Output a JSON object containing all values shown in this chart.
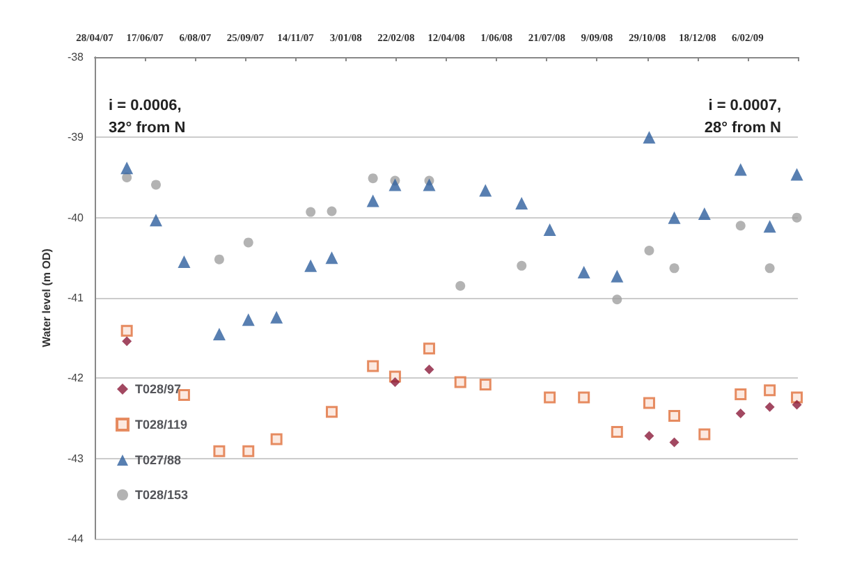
{
  "chart_data": {
    "type": "scatter",
    "ylabel": "Water level (m OD)",
    "annotations": [
      "i = 0.0006,\n32° from N",
      "i = 0.0007,\n28° from N"
    ],
    "xlim": [
      "2007-04-28",
      "2009-03-28"
    ],
    "xticks": [
      {
        "value": "2007-04-28",
        "label": "28/04/07"
      },
      {
        "value": "2007-06-17",
        "label": "17/06/07"
      },
      {
        "value": "2007-08-06",
        "label": "6/08/07"
      },
      {
        "value": "2007-09-25",
        "label": "25/09/07"
      },
      {
        "value": "2007-11-14",
        "label": "14/11/07"
      },
      {
        "value": "2008-01-03",
        "label": "3/01/08"
      },
      {
        "value": "2008-02-22",
        "label": "22/02/08"
      },
      {
        "value": "2008-04-12",
        "label": "12/04/08"
      },
      {
        "value": "2008-06-01",
        "label": "1/06/08"
      },
      {
        "value": "2008-07-21",
        "label": "21/07/08"
      },
      {
        "value": "2008-09-09",
        "label": "9/09/08"
      },
      {
        "value": "2008-10-29",
        "label": "29/10/08"
      },
      {
        "value": "2008-12-18",
        "label": "18/12/08"
      },
      {
        "value": "2009-02-06",
        "label": "6/02/09"
      },
      {
        "value": "2009-03-28",
        "label": null
      }
    ],
    "ylim": [
      -44,
      -38
    ],
    "yticks": [
      -44,
      -43,
      -42,
      -41,
      -40,
      -39,
      -38
    ],
    "grid": "y",
    "legend": "bottom left",
    "series": [
      {
        "name": "T028/97",
        "color": "#8b1a3a",
        "marker": "diamond",
        "x": [
          "2007-05-30",
          "2008-02-21",
          "2008-03-26",
          "2008-10-31",
          "2008-11-25",
          "2009-01-30",
          "2009-02-28",
          "2009-03-27"
        ],
        "values": [
          -41.54,
          -42.05,
          -41.89,
          -42.72,
          -42.8,
          -42.44,
          -42.36,
          -42.33
        ]
      },
      {
        "name": "T028/119",
        "color": "#e0703c",
        "marker": "square",
        "x": [
          "2007-05-30",
          "2007-07-26",
          "2007-08-30",
          "2007-09-28",
          "2007-10-26",
          "2007-12-20",
          "2008-01-30",
          "2008-02-21",
          "2008-03-26",
          "2008-04-26",
          "2008-05-21",
          "2008-07-24",
          "2008-08-27",
          "2008-09-29",
          "2008-10-31",
          "2008-11-25",
          "2008-12-25",
          "2009-01-30",
          "2009-02-28",
          "2009-03-27"
        ],
        "values": [
          -41.41,
          -42.21,
          -42.91,
          -42.91,
          -42.76,
          -42.42,
          -41.85,
          -41.98,
          -41.63,
          -42.05,
          -42.08,
          -42.24,
          -42.24,
          -42.67,
          -42.31,
          -42.47,
          -42.7,
          -42.2,
          -42.15,
          -42.24
        ]
      },
      {
        "name": "T027/88",
        "color": "#2e5f9e",
        "marker": "triangle",
        "x": [
          "2007-05-30",
          "2007-06-28",
          "2007-07-26",
          "2007-08-30",
          "2007-09-28",
          "2007-10-26",
          "2007-11-29",
          "2007-12-20",
          "2008-01-30",
          "2008-02-21",
          "2008-03-26",
          "2008-05-21",
          "2008-06-26",
          "2008-07-24",
          "2008-08-27",
          "2008-09-29",
          "2008-10-31",
          "2008-11-25",
          "2008-12-25",
          "2009-01-30",
          "2009-02-28",
          "2009-03-27"
        ],
        "values": [
          -39.38,
          -40.03,
          -40.55,
          -41.45,
          -41.27,
          -41.24,
          -40.6,
          -40.5,
          -39.79,
          -39.59,
          -39.59,
          -39.66,
          -39.82,
          -40.15,
          -40.68,
          -40.73,
          -39.0,
          -40.0,
          -39.95,
          -39.4,
          -40.11,
          -39.46
        ]
      },
      {
        "name": "T028/153",
        "color": "#a0a0a0",
        "marker": "circle",
        "x": [
          "2007-05-30",
          "2007-06-28",
          "2007-08-30",
          "2007-09-28",
          "2007-11-29",
          "2007-12-20",
          "2008-01-30",
          "2008-02-21",
          "2008-03-26",
          "2008-04-26",
          "2008-06-26",
          "2008-09-29",
          "2008-10-31",
          "2008-11-25",
          "2009-01-30",
          "2009-02-28",
          "2009-03-27"
        ],
        "values": [
          -39.5,
          -39.59,
          -40.52,
          -40.31,
          -39.93,
          -39.92,
          -39.51,
          -39.54,
          -39.54,
          -40.85,
          -40.6,
          -41.02,
          -40.41,
          -40.63,
          -40.1,
          -40.63,
          -40.0
        ]
      }
    ]
  }
}
